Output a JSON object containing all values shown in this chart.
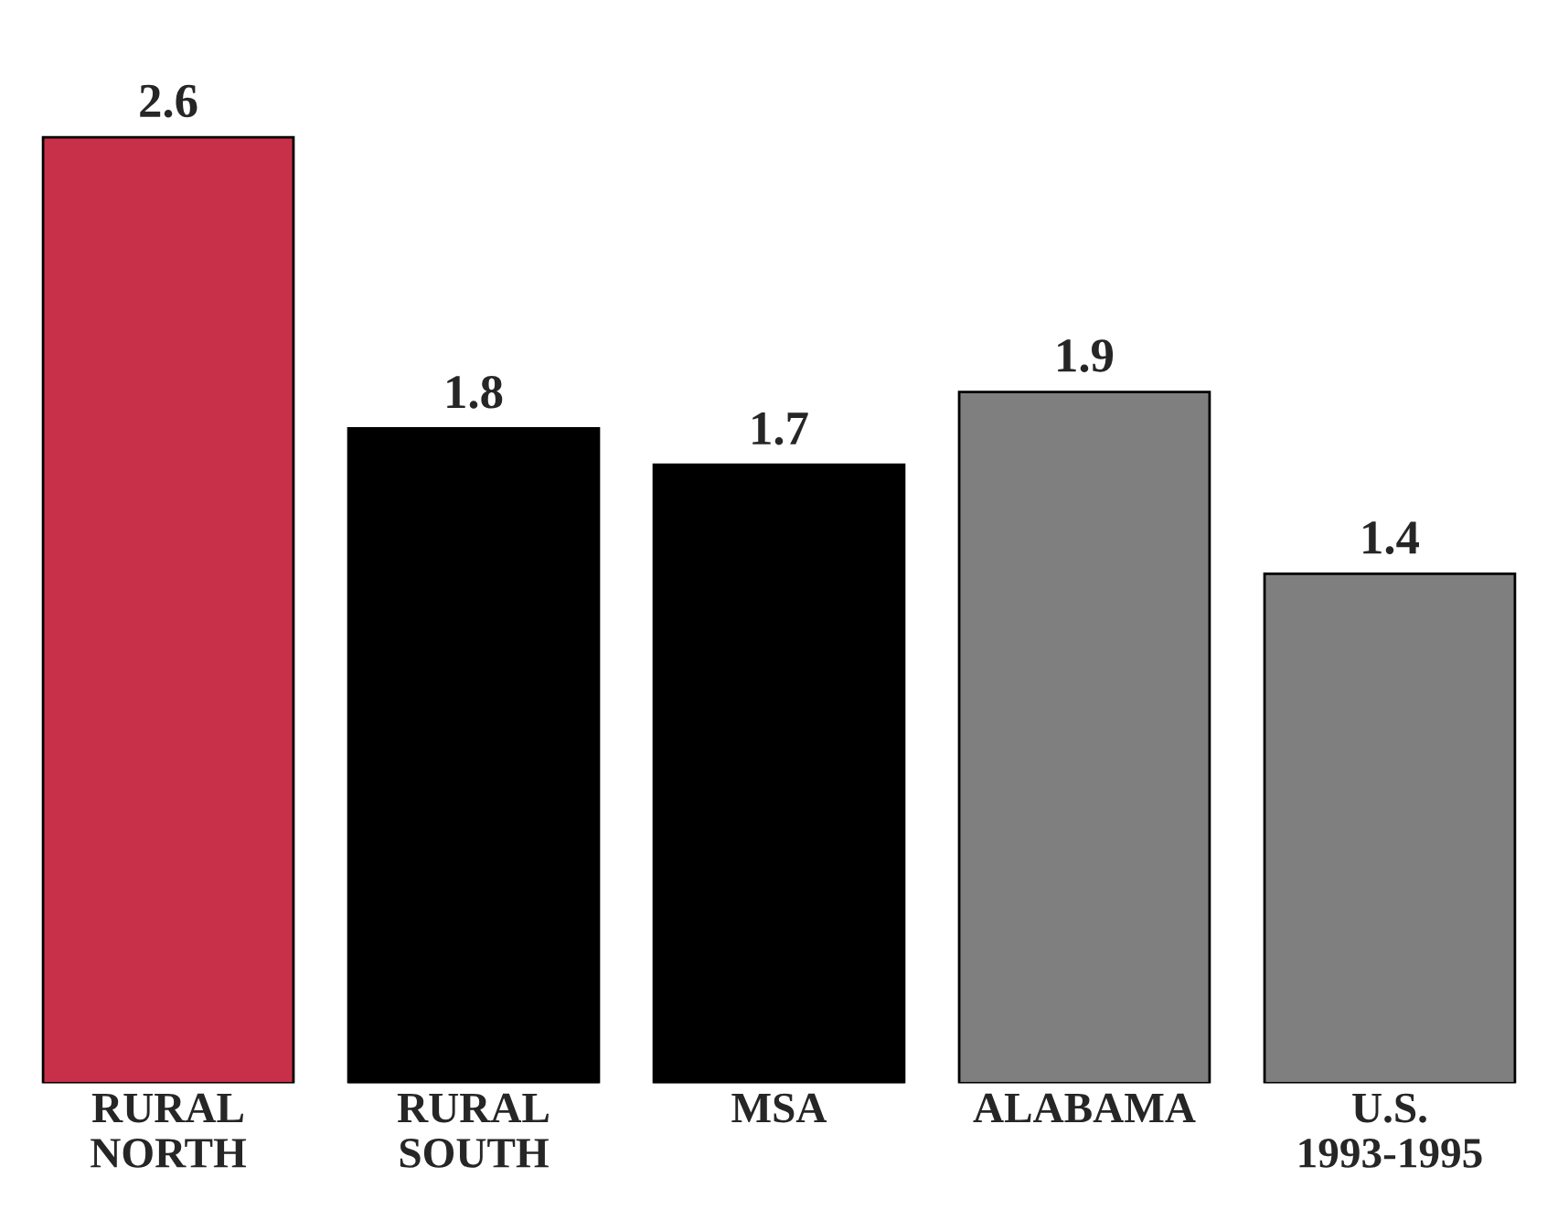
{
  "chart_data": {
    "type": "bar",
    "categories": [
      "RURAL\nNORTH",
      "RURAL\nSOUTH",
      "MSA",
      "ALABAMA",
      "U.S.\n1993-1995"
    ],
    "values": [
      2.6,
      1.8,
      1.7,
      1.9,
      1.4
    ],
    "colors": [
      "#c8304a",
      "#000000",
      "#000000",
      "#7f7f7f",
      "#7f7f7f"
    ],
    "data_labels": true,
    "grid": false,
    "legend": false,
    "tick_labels": "x"
  }
}
